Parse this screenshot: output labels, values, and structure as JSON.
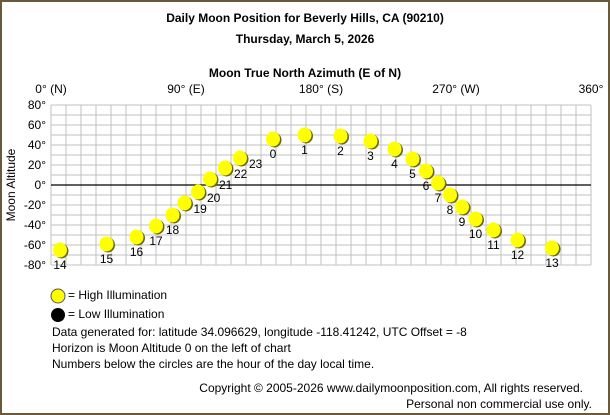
{
  "chart_data": {
    "type": "scatter",
    "title": "Daily Moon Position for Beverly Hills, CA (90210)",
    "subtitle": "Thursday, March 5, 2026",
    "xlabel": "Moon True North Azimuth (E of N)",
    "ylabel": "Moon Altitude",
    "xlim": [
      0,
      360
    ],
    "ylim": [
      -80,
      80
    ],
    "grid": true,
    "x_ticks": [
      {
        "value": 0,
        "label": "0° (N)"
      },
      {
        "value": 90,
        "label": "90° (E)"
      },
      {
        "value": 180,
        "label": "180° (S)"
      },
      {
        "value": 270,
        "label": "270° (W)"
      },
      {
        "value": 360,
        "label": "360°"
      }
    ],
    "y_ticks": [
      {
        "value": 80,
        "label": "80°"
      },
      {
        "value": 60,
        "label": "60°"
      },
      {
        "value": 40,
        "label": "40°"
      },
      {
        "value": 20,
        "label": "20°"
      },
      {
        "value": 0,
        "label": "0°"
      },
      {
        "value": -20,
        "label": "-20°"
      },
      {
        "value": -40,
        "label": "-40°"
      },
      {
        "value": -60,
        "label": "-60°"
      },
      {
        "value": -80,
        "label": "-80°"
      }
    ],
    "colors": {
      "high": "#ffff00",
      "low": "#000000",
      "grid": "#c0c0c0",
      "horizon": "#000000"
    },
    "points": [
      {
        "hour": "0",
        "azimuth": 148,
        "altitude": 46,
        "illumination": "high"
      },
      {
        "hour": "1",
        "azimuth": 169,
        "altitude": 50,
        "illumination": "high"
      },
      {
        "hour": "2",
        "azimuth": 193,
        "altitude": 49,
        "illumination": "high"
      },
      {
        "hour": "3",
        "azimuth": 213,
        "altitude": 44,
        "illumination": "high"
      },
      {
        "hour": "4",
        "azimuth": 229,
        "altitude": 36,
        "illumination": "high"
      },
      {
        "hour": "5",
        "azimuth": 241,
        "altitude": 26,
        "illumination": "high"
      },
      {
        "hour": "6",
        "azimuth": 250,
        "altitude": 14,
        "illumination": "high"
      },
      {
        "hour": "7",
        "azimuth": 258,
        "altitude": 2,
        "illumination": "high"
      },
      {
        "hour": "8",
        "azimuth": 266,
        "altitude": -10,
        "illumination": "high"
      },
      {
        "hour": "9",
        "azimuth": 274,
        "altitude": -22,
        "illumination": "high"
      },
      {
        "hour": "10",
        "azimuth": 283,
        "altitude": -34,
        "illumination": "high"
      },
      {
        "hour": "11",
        "azimuth": 295,
        "altitude": -45,
        "illumination": "high"
      },
      {
        "hour": "12",
        "azimuth": 311,
        "altitude": -55,
        "illumination": "high"
      },
      {
        "hour": "13",
        "azimuth": 334,
        "altitude": -63,
        "illumination": "high"
      },
      {
        "hour": "14",
        "azimuth": 6,
        "altitude": -65,
        "illumination": "high"
      },
      {
        "hour": "15",
        "azimuth": 37,
        "altitude": -59,
        "illumination": "high"
      },
      {
        "hour": "16",
        "azimuth": 57,
        "altitude": -52,
        "illumination": "high"
      },
      {
        "hour": "17",
        "azimuth": 70,
        "altitude": -41,
        "illumination": "high"
      },
      {
        "hour": "18",
        "azimuth": 81,
        "altitude": -30,
        "illumination": "high"
      },
      {
        "hour": "19",
        "azimuth": 89,
        "altitude": -18,
        "illumination": "high"
      },
      {
        "hour": "20",
        "azimuth": 98,
        "altitude": -7,
        "illumination": "high"
      },
      {
        "hour": "21",
        "azimuth": 106,
        "altitude": 6,
        "illumination": "high"
      },
      {
        "hour": "22",
        "azimuth": 116,
        "altitude": 17,
        "illumination": "high"
      },
      {
        "hour": "23",
        "azimuth": 126,
        "altitude": 27,
        "illumination": "high"
      }
    ]
  },
  "legend": {
    "high": "= High Illumination",
    "low": "= Low Illumination"
  },
  "notes": [
    "Data generated for: latitude 34.096629, longitude -118.41242, UTC Offset = -8",
    "Horizon is Moon Altitude 0 on the left of chart",
    "Numbers below the circles are the hour of the day local time."
  ],
  "footer": {
    "copyright": "Copyright © 2005-2026 www.dailymoonposition.com, All rights reserved.",
    "usage": "Personal non commercial use only."
  }
}
